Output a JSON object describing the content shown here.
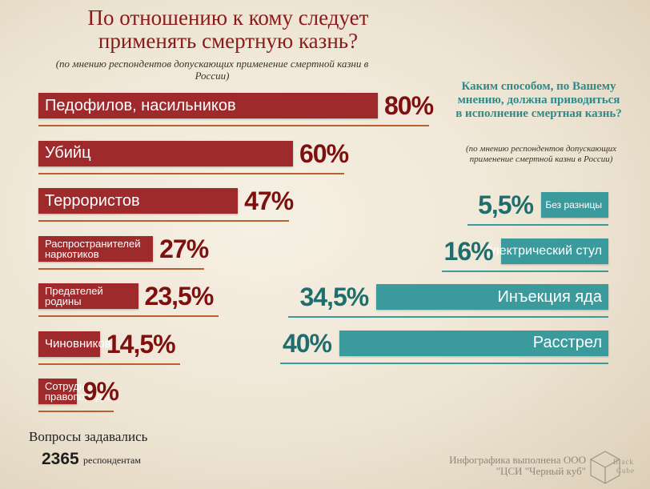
{
  "left_title": "По отношению к кому следует применять смертную казнь?",
  "left_subtitle": "(по мнению респондентов допускающих применение смертной казни в России)",
  "right_title": "Каким способом, по Вашему мнению, должна приводиться в исполнение смертная казнь?",
  "right_subtitle": "(по мнению респондентов допускающих применение смертной казни в России)",
  "footer": {
    "asked_label": "Вопросы задавались",
    "respondents_count": "2365",
    "respondents_label": "респондентам",
    "credit": "Инфографика выполнена ООО \"ЦСИ \"Черный куб\"",
    "logo_text": "Black Cube"
  },
  "colors": {
    "left_bar": "#9e2a2b",
    "right_bar": "#3a9a9c",
    "left_pct": "#7e1010",
    "right_pct": "#1f6e6e"
  },
  "chart_data": [
    {
      "type": "bar",
      "title": "По отношению к кому следует применять смертную казнь?",
      "subtitle": "(по мнению респондентов допускающих применение смертной казни в России)",
      "categories": [
        "Педофилов, насильников",
        "Убийц",
        "Террористов",
        "Распространителей наркотиков",
        "Предателей родины",
        "Чиновников",
        "Сотрудников правопорядка"
      ],
      "values": [
        80,
        60,
        47,
        27,
        23.5,
        14.5,
        9
      ],
      "labels": [
        "80%",
        "60%",
        "47%",
        "27%",
        "23,5%",
        "14,5%",
        "9%"
      ],
      "unit": "%",
      "grid": false
    },
    {
      "type": "bar",
      "title": "Каким способом, по Вашему мнению, должна приводиться в исполнение смертная казнь?",
      "subtitle": "(по мнению респондентов допускающих применение смертной казни в России)",
      "categories": [
        "Без разницы",
        "Электрический стул",
        "Инъекция яда",
        "Расстрел"
      ],
      "values": [
        5.5,
        16,
        34.5,
        40
      ],
      "labels": [
        "5,5%",
        "16%",
        "34,5%",
        "40%"
      ],
      "unit": "%",
      "grid": false
    }
  ]
}
